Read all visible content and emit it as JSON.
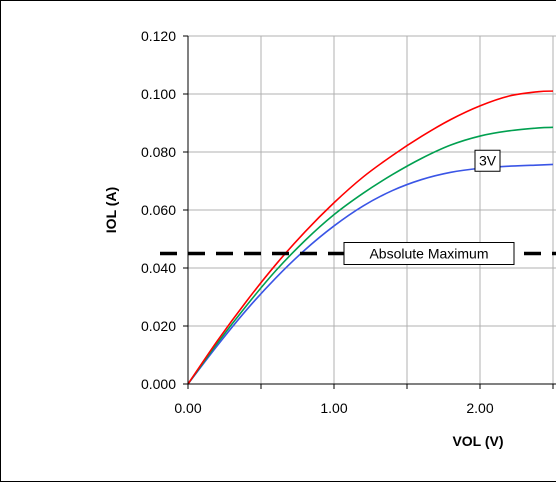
{
  "chart_data": {
    "type": "line",
    "xlabel": "VOL (V)",
    "ylabel": "IOL (A)",
    "xlim": [
      0,
      2.5
    ],
    "ylim": [
      0,
      0.12
    ],
    "x_ticks": [
      0,
      0.5,
      1.0,
      1.5,
      2.0,
      2.5
    ],
    "x_tick_labels": [
      "0.00",
      "",
      "1.00",
      "",
      "2.00",
      ""
    ],
    "y_ticks": [
      0,
      0.02,
      0.04,
      0.06,
      0.08,
      0.1,
      0.12
    ],
    "y_tick_labels": [
      "0.000",
      "0.020",
      "0.040",
      "0.060",
      "0.080",
      "0.100",
      "0.120"
    ],
    "grid": true,
    "series": [
      {
        "color": "#ff0000",
        "x": [
          0,
          0.2,
          0.4,
          0.6,
          0.8,
          1.0,
          1.2,
          1.4,
          1.6,
          1.8,
          2.0,
          2.2,
          2.4,
          2.5
        ],
        "y": [
          0,
          0.0148,
          0.0285,
          0.0411,
          0.0524,
          0.0625,
          0.0714,
          0.0788,
          0.0854,
          0.0912,
          0.0959,
          0.0993,
          0.1008,
          0.101
        ]
      },
      {
        "color": "#00a050",
        "x": [
          0,
          0.2,
          0.4,
          0.6,
          0.8,
          1.0,
          1.2,
          1.4,
          1.6,
          1.8,
          2.0,
          2.2,
          2.4,
          2.5
        ],
        "y": [
          0,
          0.014,
          0.027,
          0.039,
          0.0494,
          0.0584,
          0.0658,
          0.0722,
          0.0778,
          0.0824,
          0.0855,
          0.0873,
          0.0883,
          0.0885
        ]
      },
      {
        "color": "#3a55e6",
        "x": [
          0,
          0.2,
          0.4,
          0.6,
          0.8,
          1.0,
          1.2,
          1.4,
          1.6,
          1.8,
          2.0,
          2.2,
          2.4,
          2.5
        ],
        "y": [
          0,
          0.0132,
          0.0255,
          0.0365,
          0.0462,
          0.0545,
          0.0614,
          0.0667,
          0.0705,
          0.073,
          0.0744,
          0.0751,
          0.0755,
          0.0757
        ]
      }
    ],
    "reference_lines": [
      {
        "y": 0.045,
        "label": "Absolute Maximum",
        "style": "dashed",
        "color": "#000000"
      }
    ],
    "annotations": [
      {
        "text": "3V",
        "x": 2.0,
        "y": 0.0775
      }
    ]
  }
}
